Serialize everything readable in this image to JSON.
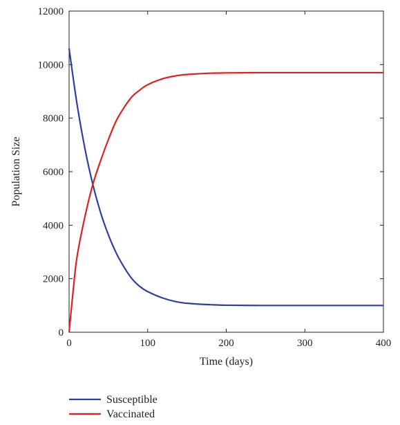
{
  "chart_data": {
    "type": "line",
    "title": "",
    "xlabel": "Time (days)",
    "ylabel": "Population Size",
    "xlim": [
      0,
      400
    ],
    "ylim": [
      0,
      12000
    ],
    "xticks": [
      0,
      100,
      200,
      300,
      400
    ],
    "yticks": [
      0,
      2000,
      4000,
      6000,
      8000,
      10000,
      12000
    ],
    "x_tick_labels": [
      "0",
      "100",
      "200",
      "300",
      "400"
    ],
    "y_tick_labels": [
      "0",
      "2000",
      "4000",
      "6000",
      "8000",
      "10000",
      "12000"
    ],
    "grid": false,
    "legend_position": "bottom",
    "series": [
      {
        "name": "Susceptible",
        "color": "#2e3f9c",
        "x": [
          0,
          10,
          20,
          30,
          40,
          50,
          60,
          70,
          80,
          90,
          100,
          120,
          140,
          160,
          180,
          200,
          250,
          300,
          350,
          400
        ],
        "values": [
          10600,
          8540,
          6880,
          5550,
          4480,
          3640,
          2960,
          2430,
          2000,
          1710,
          1520,
          1270,
          1120,
          1060,
          1030,
          1010,
          1000,
          1000,
          1000,
          1000
        ]
      },
      {
        "name": "Vaccinated",
        "color": "#e02020",
        "x": [
          0,
          5,
          10,
          20,
          30,
          40,
          50,
          60,
          70,
          80,
          90,
          100,
          120,
          140,
          160,
          180,
          200,
          250,
          300,
          350,
          400
        ],
        "values": [
          0,
          1500,
          2800,
          4300,
          5500,
          6400,
          7200,
          7900,
          8400,
          8800,
          9050,
          9250,
          9480,
          9600,
          9650,
          9680,
          9690,
          9700,
          9700,
          9700,
          9700
        ]
      }
    ],
    "legend": [
      "Susceptible",
      "Vaccinated"
    ]
  }
}
